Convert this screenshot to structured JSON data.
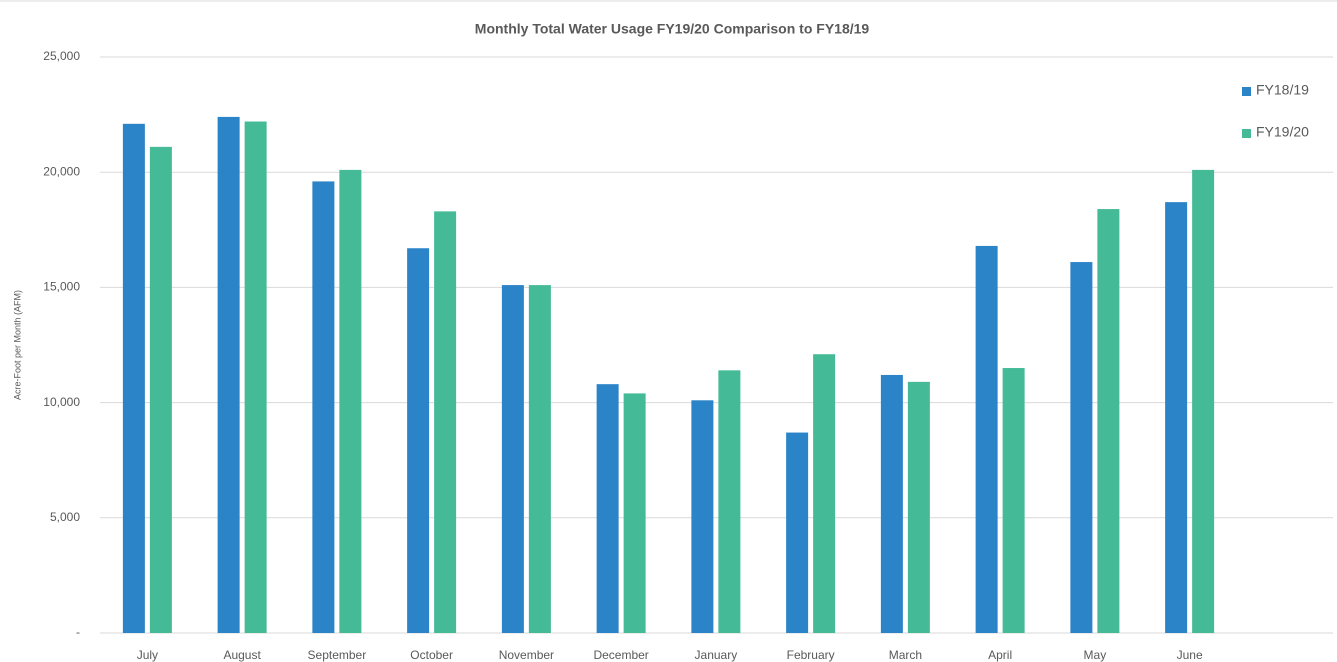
{
  "chart_data": {
    "type": "bar",
    "title": "Monthly Total Water Usage FY19/20 Comparison to FY18/19",
    "y_label": "Acre-Foot per Month (AFM)",
    "categories": [
      "July",
      "August",
      "September",
      "October",
      "November",
      "December",
      "January",
      "February",
      "March",
      "April",
      "May",
      "June"
    ],
    "series": [
      {
        "name": "FY18/19",
        "color": "#2b83c8",
        "values": [
          22100,
          22400,
          19600,
          16700,
          15100,
          10800,
          10100,
          8700,
          11200,
          16800,
          16100,
          18700
        ]
      },
      {
        "name": "FY19/20",
        "color": "#44bb96",
        "values": [
          21100,
          22200,
          20100,
          18300,
          15100,
          10400,
          11400,
          12100,
          10900,
          11500,
          18400,
          20100
        ]
      }
    ],
    "ylim": [
      0,
      25000
    ],
    "yticks": [
      {
        "value": 0,
        "label": "-"
      },
      {
        "value": 5000,
        "label": "5,000"
      },
      {
        "value": 10000,
        "label": "10,000"
      },
      {
        "value": 15000,
        "label": "15,000"
      },
      {
        "value": 20000,
        "label": "20,000"
      },
      {
        "value": 25000,
        "label": "25,000"
      }
    ],
    "grid": true,
    "legend": "right"
  }
}
